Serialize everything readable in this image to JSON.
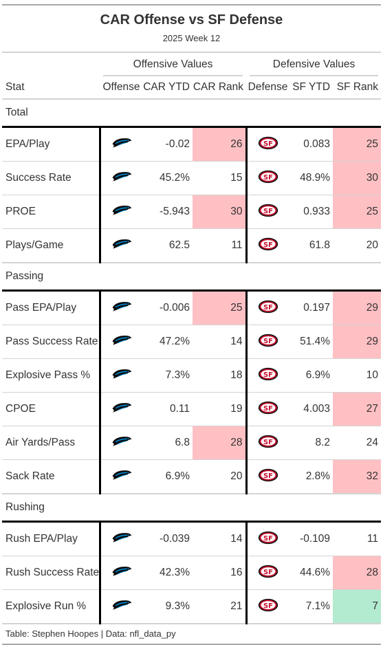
{
  "title": "CAR Offense vs SF Defense",
  "subtitle": "2025 Week 12",
  "spanners": {
    "offense": "Offensive Values",
    "defense": "Defensive Values"
  },
  "columns": [
    "Stat",
    "Offense",
    "CAR YTD",
    "CAR Rank",
    "Defense",
    "SF YTD",
    "SF Rank"
  ],
  "offense_logo": "panthers-logo-icon",
  "defense_logo": "49ers-logo-icon",
  "colors": {
    "bad_rank": "#ffc0c4",
    "good_rank": "#b2ebcf",
    "divider": "#000000"
  },
  "groups": [
    {
      "name": "Total",
      "rows": [
        {
          "stat": "EPA/Play",
          "car_ytd": "-0.02",
          "car_rank": "26",
          "car_hl": "bad",
          "sf_ytd": "0.083",
          "sf_rank": "25",
          "sf_hl": "bad"
        },
        {
          "stat": "Success Rate",
          "car_ytd": "45.2%",
          "car_rank": "15",
          "car_hl": "",
          "sf_ytd": "48.9%",
          "sf_rank": "30",
          "sf_hl": "bad"
        },
        {
          "stat": "PROE",
          "car_ytd": "-5.943",
          "car_rank": "30",
          "car_hl": "bad",
          "sf_ytd": "0.933",
          "sf_rank": "25",
          "sf_hl": "bad"
        },
        {
          "stat": "Plays/Game",
          "car_ytd": "62.5",
          "car_rank": "11",
          "car_hl": "",
          "sf_ytd": "61.8",
          "sf_rank": "20",
          "sf_hl": ""
        }
      ]
    },
    {
      "name": "Passing",
      "rows": [
        {
          "stat": "Pass EPA/Play",
          "car_ytd": "-0.006",
          "car_rank": "25",
          "car_hl": "bad",
          "sf_ytd": "0.197",
          "sf_rank": "29",
          "sf_hl": "bad"
        },
        {
          "stat": "Pass Success Rate",
          "car_ytd": "47.2%",
          "car_rank": "14",
          "car_hl": "",
          "sf_ytd": "51.4%",
          "sf_rank": "29",
          "sf_hl": "bad"
        },
        {
          "stat": "Explosive Pass %",
          "car_ytd": "7.3%",
          "car_rank": "18",
          "car_hl": "",
          "sf_ytd": "6.9%",
          "sf_rank": "10",
          "sf_hl": ""
        },
        {
          "stat": "CPOE",
          "car_ytd": "0.11",
          "car_rank": "19",
          "car_hl": "",
          "sf_ytd": "4.003",
          "sf_rank": "27",
          "sf_hl": "bad"
        },
        {
          "stat": "Air Yards/Pass",
          "car_ytd": "6.8",
          "car_rank": "28",
          "car_hl": "bad",
          "sf_ytd": "8.2",
          "sf_rank": "24",
          "sf_hl": ""
        },
        {
          "stat": "Sack Rate",
          "car_ytd": "6.9%",
          "car_rank": "20",
          "car_hl": "",
          "sf_ytd": "2.8%",
          "sf_rank": "32",
          "sf_hl": "bad"
        }
      ]
    },
    {
      "name": "Rushing",
      "rows": [
        {
          "stat": "Rush EPA/Play",
          "car_ytd": "-0.039",
          "car_rank": "14",
          "car_hl": "",
          "sf_ytd": "-0.109",
          "sf_rank": "11",
          "sf_hl": ""
        },
        {
          "stat": "Rush Success Rate",
          "car_ytd": "42.3%",
          "car_rank": "16",
          "car_hl": "",
          "sf_ytd": "44.6%",
          "sf_rank": "28",
          "sf_hl": "bad"
        },
        {
          "stat": "Explosive Run %",
          "car_ytd": "9.3%",
          "car_rank": "21",
          "car_hl": "",
          "sf_ytd": "7.1%",
          "sf_rank": "7",
          "sf_hl": "good"
        }
      ]
    }
  ],
  "source_note": "Table: Stephen Hoopes | Data: nfl_data_py",
  "chart_data": {
    "type": "table",
    "title": "CAR Offense vs SF Defense",
    "subtitle": "2025 Week 12",
    "columns": [
      "Stat",
      "CAR YTD",
      "CAR Rank",
      "SF YTD",
      "SF Rank"
    ],
    "rows": [
      [
        "EPA/Play",
        -0.02,
        26,
        0.083,
        25
      ],
      [
        "Success Rate",
        "45.2%",
        15,
        "48.9%",
        30
      ],
      [
        "PROE",
        -5.943,
        30,
        0.933,
        25
      ],
      [
        "Plays/Game",
        62.5,
        11,
        61.8,
        20
      ],
      [
        "Pass EPA/Play",
        -0.006,
        25,
        0.197,
        29
      ],
      [
        "Pass Success Rate",
        "47.2%",
        14,
        "51.4%",
        29
      ],
      [
        "Explosive Pass %",
        "7.3%",
        18,
        "6.9%",
        10
      ],
      [
        "CPOE",
        0.11,
        19,
        4.003,
        27
      ],
      [
        "Air Yards/Pass",
        6.8,
        28,
        8.2,
        24
      ],
      [
        "Sack Rate",
        "6.9%",
        20,
        "2.8%",
        32
      ],
      [
        "Rush EPA/Play",
        -0.039,
        14,
        -0.109,
        11
      ],
      [
        "Rush Success Rate",
        "42.3%",
        16,
        "44.6%",
        28
      ],
      [
        "Explosive Run %",
        "9.3%",
        21,
        "7.1%",
        7
      ]
    ]
  }
}
